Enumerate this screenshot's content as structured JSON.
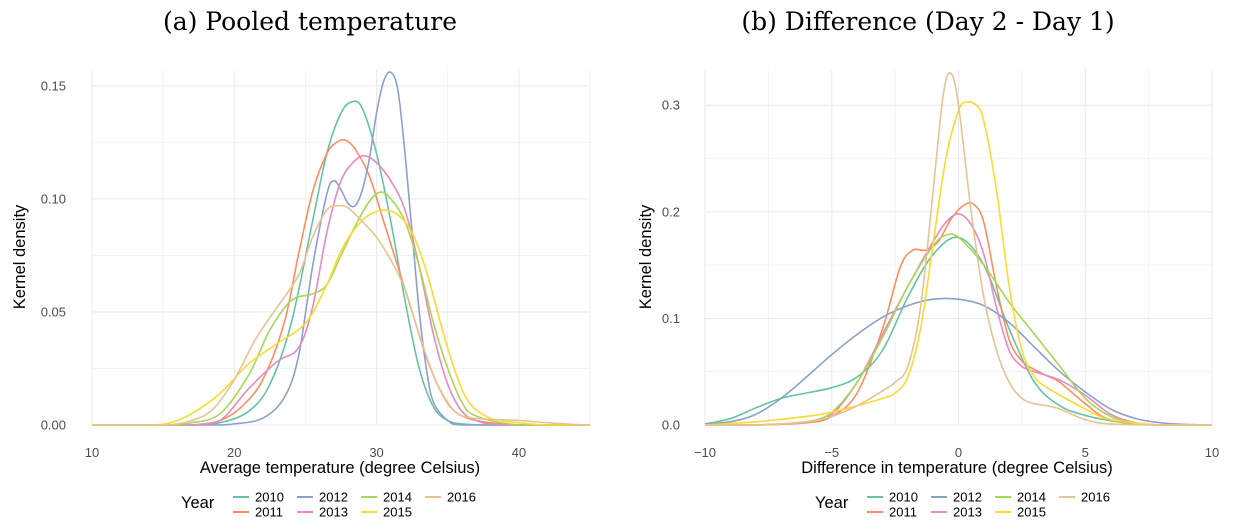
{
  "colors": {
    "2010": "#66c2a5",
    "2011": "#fc8d62",
    "2012": "#8da0cb",
    "2013": "#e78ac3",
    "2014": "#a6d854",
    "2015": "#ffd92f",
    "2016": "#e5c494",
    "grid": "#ebebeb"
  },
  "legend_title": "Year",
  "chart_data": [
    {
      "type": "line",
      "title": "(a) Pooled temperature",
      "xlabel": "Average temperature (degree Celsius)",
      "ylabel": "Kernel density",
      "xlim": [
        10,
        45
      ],
      "ylim": [
        0,
        0.157
      ],
      "x_ticks": [
        10,
        20,
        30,
        40
      ],
      "x_tick_labels": [
        "10",
        "20",
        "30",
        "40"
      ],
      "y_ticks": [
        0,
        0.05,
        0.1,
        0.15
      ],
      "y_tick_labels": [
        "0.00",
        "0.05",
        "0.10",
        "0.15"
      ],
      "grid": true,
      "legend": "bottom",
      "series": [
        {
          "name": "2010",
          "x": [
            10,
            15,
            17,
            19,
            21,
            22.5,
            24,
            25.5,
            26.5,
            27.5,
            28.3,
            29,
            30,
            31,
            32,
            33,
            34,
            35,
            36,
            38,
            40,
            45
          ],
          "y": [
            0,
            0,
            0,
            0.001,
            0.006,
            0.018,
            0.045,
            0.09,
            0.12,
            0.138,
            0.143,
            0.14,
            0.12,
            0.09,
            0.055,
            0.025,
            0.008,
            0.002,
            0.0005,
            0,
            0,
            0
          ]
        },
        {
          "name": "2011",
          "x": [
            10,
            15,
            17,
            19,
            20.5,
            22,
            23.5,
            24.5,
            25.5,
            26.5,
            27.2,
            27.8,
            28.5,
            29.5,
            30.5,
            31.5,
            32.5,
            33.5,
            34.5,
            35.5,
            37,
            40,
            45
          ],
          "y": [
            0,
            0,
            0,
            0.002,
            0.008,
            0.02,
            0.045,
            0.075,
            0.103,
            0.12,
            0.125,
            0.126,
            0.122,
            0.11,
            0.09,
            0.07,
            0.05,
            0.03,
            0.015,
            0.006,
            0.002,
            0,
            0
          ]
        },
        {
          "name": "2012",
          "x": [
            10,
            18,
            20,
            22,
            23.5,
            24.5,
            25.5,
            26.5,
            27,
            27.5,
            28,
            28.5,
            29,
            29.5,
            30,
            30.5,
            31,
            31.5,
            32,
            32.5,
            33,
            33.5,
            34,
            35,
            36,
            40,
            45
          ],
          "y": [
            0,
            0,
            0.0005,
            0.003,
            0.012,
            0.03,
            0.07,
            0.102,
            0.108,
            0.104,
            0.098,
            0.097,
            0.104,
            0.118,
            0.138,
            0.152,
            0.156,
            0.148,
            0.12,
            0.085,
            0.05,
            0.025,
            0.01,
            0.002,
            0,
            0,
            0
          ]
        },
        {
          "name": "2013",
          "x": [
            10,
            15,
            17,
            19,
            21,
            23,
            24.5,
            25.5,
            26.5,
            27.5,
            28.5,
            29.2,
            30,
            31,
            32,
            33,
            34,
            35,
            36,
            37,
            38,
            40,
            45
          ],
          "y": [
            0,
            0,
            0,
            0.002,
            0.016,
            0.028,
            0.034,
            0.052,
            0.085,
            0.108,
            0.117,
            0.119,
            0.116,
            0.108,
            0.095,
            0.07,
            0.04,
            0.018,
            0.006,
            0.002,
            0.0005,
            0,
            0
          ]
        },
        {
          "name": "2014",
          "x": [
            10,
            15,
            17,
            19,
            21,
            22.5,
            24,
            25.5,
            26.5,
            27.5,
            28.5,
            29.5,
            30.3,
            31,
            32,
            33,
            34,
            35,
            36,
            37,
            40,
            45
          ],
          "y": [
            0,
            0,
            0.001,
            0.005,
            0.022,
            0.042,
            0.055,
            0.058,
            0.062,
            0.075,
            0.088,
            0.099,
            0.103,
            0.1,
            0.09,
            0.07,
            0.045,
            0.025,
            0.01,
            0.004,
            0,
            0
          ]
        },
        {
          "name": "2015",
          "x": [
            10,
            14,
            15.5,
            17,
            19,
            21,
            23,
            25,
            26.5,
            27.5,
            28.5,
            29.5,
            30.5,
            31.5,
            32.5,
            33.5,
            34.5,
            35.5,
            36.5,
            38,
            40,
            42,
            45
          ],
          "y": [
            0,
            0,
            0.001,
            0.005,
            0.014,
            0.027,
            0.036,
            0.045,
            0.062,
            0.077,
            0.087,
            0.093,
            0.095,
            0.093,
            0.085,
            0.068,
            0.045,
            0.024,
            0.01,
            0.003,
            0.001,
            0,
            0
          ]
        },
        {
          "name": "2016",
          "x": [
            10,
            15,
            17,
            18.5,
            20,
            21.5,
            23,
            24.5,
            25.5,
            26.5,
            27.3,
            28,
            29,
            30,
            31,
            32,
            33,
            34,
            35,
            36,
            38,
            40,
            42,
            44,
            45
          ],
          "y": [
            0,
            0,
            0.002,
            0.007,
            0.02,
            0.038,
            0.052,
            0.066,
            0.083,
            0.095,
            0.097,
            0.096,
            0.09,
            0.083,
            0.073,
            0.06,
            0.04,
            0.022,
            0.01,
            0.004,
            0.0025,
            0.002,
            0.001,
            0.0002,
            0
          ]
        }
      ]
    },
    {
      "type": "line",
      "title": "(b) Difference (Day 2 - Day 1)",
      "xlabel": "Difference in temperature (degree Celsius)",
      "ylabel": "Kernel density",
      "xlim": [
        -10,
        10
      ],
      "ylim": [
        0,
        0.333
      ],
      "x_ticks": [
        -10,
        -5,
        0,
        5,
        10
      ],
      "x_tick_labels": [
        "−10",
        "−5",
        "0",
        "5",
        "10"
      ],
      "y_ticks": [
        0,
        0.1,
        0.2,
        0.3
      ],
      "y_tick_labels": [
        "0.0",
        "0.1",
        "0.2",
        "0.3"
      ],
      "grid": true,
      "legend": "bottom",
      "series": [
        {
          "name": "2010",
          "x": [
            -10,
            -9,
            -8,
            -7,
            -6,
            -5,
            -4,
            -3,
            -2,
            -1,
            0,
            1,
            2,
            3,
            4,
            5,
            6,
            7,
            8,
            10
          ],
          "y": [
            0.001,
            0.006,
            0.016,
            0.025,
            0.03,
            0.035,
            0.045,
            0.07,
            0.12,
            0.16,
            0.176,
            0.15,
            0.09,
            0.04,
            0.018,
            0.009,
            0.004,
            0.001,
            0,
            0
          ]
        },
        {
          "name": "2011",
          "x": [
            -10,
            -8,
            -6,
            -5,
            -4,
            -3,
            -2.3,
            -1.8,
            -1.3,
            -0.8,
            -0.3,
            0.2,
            0.6,
            1,
            1.5,
            2,
            2.5,
            3,
            3.5,
            4,
            5,
            6,
            8,
            10
          ],
          "y": [
            0,
            0,
            0.002,
            0.008,
            0.03,
            0.09,
            0.148,
            0.164,
            0.164,
            0.172,
            0.193,
            0.206,
            0.207,
            0.19,
            0.13,
            0.08,
            0.06,
            0.052,
            0.046,
            0.04,
            0.02,
            0.005,
            0,
            0
          ]
        },
        {
          "name": "2012",
          "x": [
            -10,
            -9,
            -8,
            -7,
            -6,
            -5,
            -4,
            -3,
            -2,
            -1,
            0,
            1,
            2,
            3,
            4,
            5,
            6,
            7,
            8,
            9,
            10
          ],
          "y": [
            0.001,
            0.003,
            0.01,
            0.025,
            0.045,
            0.066,
            0.085,
            0.101,
            0.112,
            0.118,
            0.118,
            0.112,
            0.096,
            0.073,
            0.05,
            0.031,
            0.015,
            0.006,
            0.002,
            0.0005,
            0
          ]
        },
        {
          "name": "2013",
          "x": [
            -10,
            -8,
            -6,
            -5,
            -4,
            -3,
            -2,
            -1,
            -0.5,
            0,
            0.5,
            1,
            1.5,
            2,
            2.5,
            3,
            4,
            5,
            6,
            7,
            8,
            10
          ],
          "y": [
            0,
            0,
            0.003,
            0.01,
            0.04,
            0.085,
            0.13,
            0.172,
            0.19,
            0.198,
            0.188,
            0.16,
            0.11,
            0.07,
            0.055,
            0.05,
            0.042,
            0.028,
            0.01,
            0.002,
            0,
            0
          ]
        },
        {
          "name": "2014",
          "x": [
            -10,
            -8,
            -6,
            -5,
            -4,
            -3,
            -2,
            -1,
            -0.5,
            0,
            1,
            2,
            3,
            4,
            5,
            6,
            7,
            8,
            10
          ],
          "y": [
            0,
            0,
            0.003,
            0.012,
            0.04,
            0.082,
            0.13,
            0.168,
            0.178,
            0.176,
            0.15,
            0.115,
            0.085,
            0.055,
            0.025,
            0.008,
            0.002,
            0,
            0
          ]
        },
        {
          "name": "2015",
          "x": [
            -10,
            -8,
            -6,
            -5,
            -4,
            -3,
            -2.5,
            -2,
            -1.5,
            -1,
            -0.5,
            0,
            0.3,
            0.7,
            1,
            1.5,
            2,
            2.5,
            3,
            3.5,
            4,
            5,
            6,
            8,
            10
          ],
          "y": [
            0,
            0.003,
            0.008,
            0.012,
            0.018,
            0.025,
            0.03,
            0.045,
            0.09,
            0.17,
            0.25,
            0.295,
            0.303,
            0.3,
            0.285,
            0.22,
            0.13,
            0.07,
            0.045,
            0.035,
            0.028,
            0.015,
            0.005,
            0,
            0
          ]
        },
        {
          "name": "2016",
          "x": [
            -10,
            -8,
            -6,
            -5,
            -4,
            -3,
            -2.5,
            -2,
            -1.5,
            -1,
            -0.6,
            -0.3,
            0,
            0.5,
            1,
            1.5,
            2,
            2.5,
            3,
            3.5,
            4,
            5,
            6,
            8,
            10
          ],
          "y": [
            0,
            0,
            0.003,
            0.008,
            0.018,
            0.032,
            0.04,
            0.055,
            0.11,
            0.22,
            0.31,
            0.33,
            0.3,
            0.2,
            0.12,
            0.07,
            0.04,
            0.025,
            0.02,
            0.018,
            0.015,
            0.005,
            0.001,
            0,
            0
          ]
        }
      ]
    }
  ]
}
